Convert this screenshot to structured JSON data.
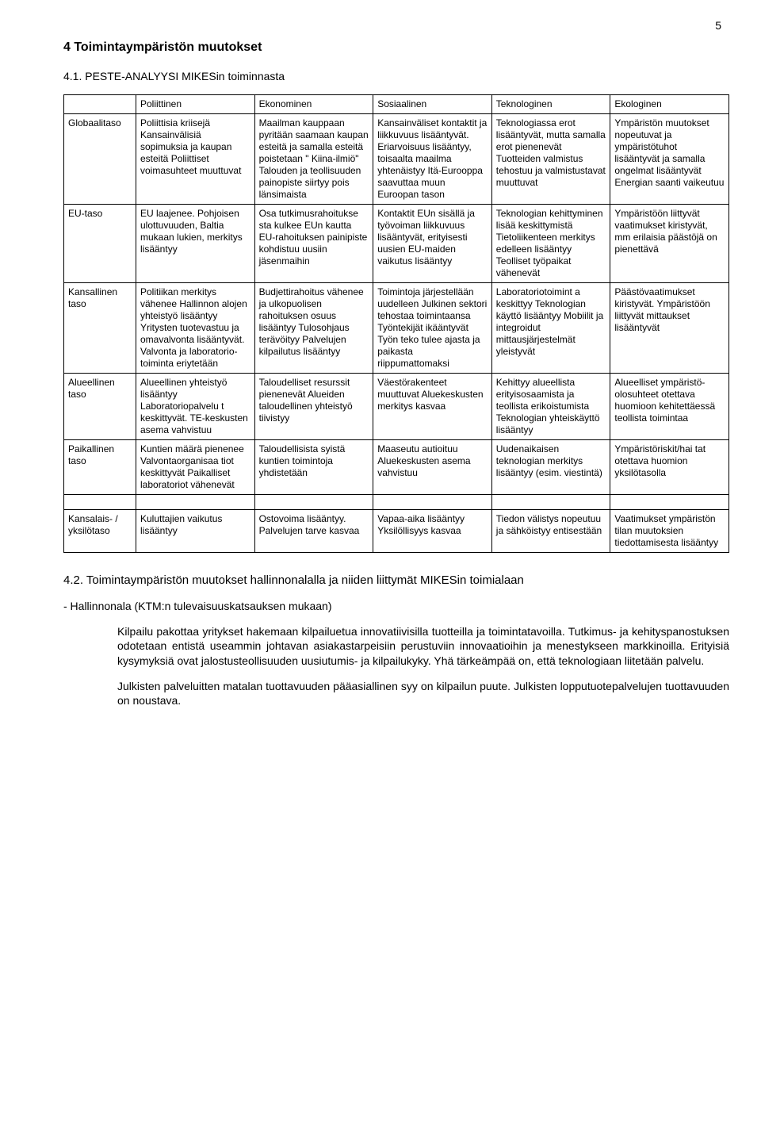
{
  "page_number": "5",
  "title_4": "4 Toimintaympäristön muutokset",
  "title_41": "4.1. PESTE-ANALYYSI MIKESin toiminnasta",
  "table": {
    "headers": [
      "",
      "Poliittinen",
      "Ekonominen",
      "Sosiaalinen",
      "Teknologinen",
      "Ekologinen"
    ],
    "rows": [
      {
        "label": "Globaalitaso",
        "cells": [
          "Poliittisia kriisejä Kansainvälisiä sopimuksia ja kaupan esteitä Poliittiset voimasuhteet muuttuvat",
          "Maailman kauppaan pyritään saamaan kaupan esteitä ja samalla esteitä poistetaan \" Kiina-ilmiö\" Talouden ja teollisuuden painopiste siirtyy pois länsimaista",
          "Kansainväliset kontaktit ja liikkuvuus lisääntyvät. Eriarvoisuus lisääntyy, toisaalta maailma yhtenäistyy Itä-Eurooppa saavuttaa muun Euroopan tason",
          "Teknologiassa erot lisääntyvät, mutta samalla erot pienenevät Tuotteiden valmistus tehostuu ja valmistustavat muuttuvat",
          "Ympäristön muutokset nopeutuvat ja ympäristötuhot lisääntyvät ja samalla ongelmat lisääntyvät Energian saanti vaikeutuu"
        ]
      },
      {
        "label": "EU-taso",
        "cells": [
          "EU laajenee. Pohjoisen ulottuvuuden, Baltia mukaan lukien, merkitys lisääntyy",
          "Osa tutkimusrahoitukse sta kulkee EUn kautta EU-rahoituksen painipiste kohdistuu uusiin jäsenmaihin",
          "Kontaktit EUn sisällä ja työvoiman liikkuvuus lisääntyvät, erityisesti uusien EU-maiden vaikutus lisääntyy",
          "Teknologian kehittyminen lisää keskittymistä Tietoliikenteen merkitys edelleen lisääntyy Teolliset työpaikat vähenevät",
          "Ympäristöön liittyvät vaatimukset kiristyvät, mm erilaisia päästöjä on  pienettävä"
        ]
      },
      {
        "label": "Kansallinen taso",
        "cells": [
          "Politiikan merkitys vähenee Hallinnon alojen yhteistyö lisääntyy Yritysten tuotevastuu ja omavalvonta lisääntyvät. Valvonta ja laboratorio-toiminta eriytetään",
          "Budjettirahoitus vähenee ja ulkopuolisen rahoituksen osuus lisääntyy Tulosohjaus terävöityy Palvelujen kilpailutus lisääntyy",
          "Toimintoja järjestellään  uudelleen Julkinen sektori tehostaa toimintaansa Työntekijät ikääntyvät Työn teko tulee ajasta ja paikasta riippumattomaksi",
          "Laboratoriotoimint a keskittyy Teknologian käyttö lisääntyy Mobiilit ja integroidut mittausjärjestelmät yleistyvät",
          "Päästövaatimukset kiristyvät. Ympäristöön liittyvät mittaukset lisääntyvät"
        ]
      },
      {
        "label": "Alueellinen taso",
        "cells": [
          "Alueellinen yhteistyö lisääntyy Laboratoriopalvelu t keskittyvät. TE-keskusten asema vahvistuu",
          "Taloudelliset resurssit pienenevät Alueiden taloudellinen yhteistyö tiivistyy",
          "Väestörakenteet muuttuvat Aluekeskusten merkitys kasvaa",
          "Kehittyy alueellista erityisosaamista ja teollista erikoistumista Teknologian yhteiskäyttö lisääntyy",
          "Alueelliset ympäristö-olosuhteet otettava huomioon kehitettäessä teollista toimintaa"
        ]
      },
      {
        "label": "Paikallinen taso",
        "cells": [
          "Kuntien määrä pienenee Valvontaorganisaa tiot keskittyvät Paikalliset laboratoriot vähenevät",
          "Taloudellisista syistä kuntien toimintoja yhdistetään",
          "Maaseutu autioituu Aluekeskusten asema vahvistuu",
          "Uudenaikaisen teknologian merkitys lisääntyy (esim. viestintä)",
          "Ympäristöriskit/hai tat otettava huomion yksilötasolla"
        ]
      }
    ],
    "bottom_row": {
      "label": "Kansalais- / yksilötaso",
      "cells": [
        "Kuluttajien vaikutus  lisääntyy",
        "Ostovoima lisääntyy. Palvelujen tarve kasvaa",
        "Vapaa-aika lisääntyy Yksilöllisyys kasvaa",
        "Tiedon välistys nopeutuu ja sähköistyy entisestään",
        "Vaatimukset ympäristön tilan muutoksien tiedottamisesta lisääntyy"
      ]
    }
  },
  "title_42": "4.2. Toimintaympäristön muutokset hallinnonalalla ja niiden liittymät MIKESin toimialaan",
  "hallinnonala": "- Hallinnonala (KTM:n tulevaisuuskatsauksen mukaan)",
  "para1": "Kilpailu pakottaa yritykset hakemaan kilpailuetua innovatiivisilla tuotteilla ja toimintatavoilla. Tutkimus- ja kehityspanostuksen odotetaan entistä useammin johtavan asiakastarpeisiin perustuviin innovaatioihin ja menestykseen markkinoilla. Erityisiä kysymyksiä ovat jalostusteollisuuden uusiutumis- ja kilpailukyky. Yhä tärkeämpää on, että teknologiaan liitetään palvelu.",
  "para2": "Julkisten palveluitten matalan tuottavuuden pääasiallinen syy on kilpailun puute. Julkisten lopputuotepalvelujen tuottavuuden on noustava."
}
